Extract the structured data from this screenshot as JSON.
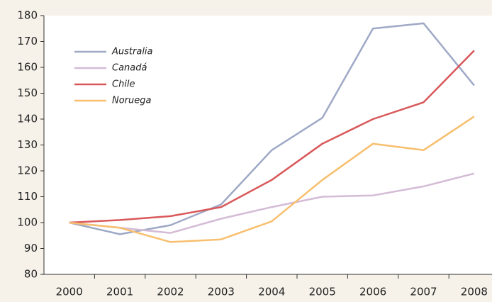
{
  "chart_data": {
    "type": "line",
    "categories": [
      "2000",
      "2001",
      "2002",
      "2003",
      "2004",
      "2005",
      "2006",
      "2007",
      "2008"
    ],
    "series": [
      {
        "name": "Australia",
        "color": "#9fa9c6",
        "values": [
          100,
          95.5,
          99,
          107,
          128,
          140.5,
          175,
          177,
          153
        ]
      },
      {
        "name": "Canadá",
        "color": "#d4bbd6",
        "values": [
          100,
          98,
          96,
          101.5,
          106,
          110,
          110.5,
          114,
          119
        ]
      },
      {
        "name": "Chile",
        "color": "#d9585a",
        "values": [
          100,
          101,
          102.5,
          106,
          116.5,
          130.5,
          140,
          146.5,
          166.5
        ]
      },
      {
        "name": "Noruega",
        "color": "#f7bf6e",
        "values": [
          100,
          98,
          92.5,
          93.5,
          100.5,
          116.5,
          130.5,
          128,
          141
        ]
      }
    ],
    "ylim": [
      80,
      180
    ],
    "yticks": [
      80,
      90,
      100,
      110,
      120,
      130,
      140,
      150,
      160,
      170,
      180
    ],
    "grid": false,
    "legend": "top-left"
  }
}
